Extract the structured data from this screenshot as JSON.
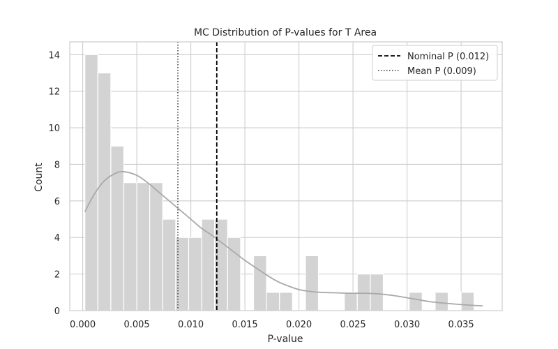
{
  "chart_data": {
    "type": "bar",
    "title": "MC Distribution of P-values for T Area",
    "xlabel": "P-value",
    "ylabel": "Count",
    "xlim": [
      -0.0012,
      0.0388
    ],
    "ylim": [
      0,
      14.7
    ],
    "xticks": [
      0.0,
      0.005,
      0.01,
      0.015,
      0.02,
      0.025,
      0.03,
      0.035
    ],
    "xtick_labels": [
      "0.000",
      "0.005",
      "0.010",
      "0.015",
      "0.020",
      "0.025",
      "0.030",
      "0.035"
    ],
    "yticks": [
      0,
      2,
      4,
      6,
      8,
      10,
      12,
      14
    ],
    "ytick_labels": [
      "0",
      "2",
      "4",
      "6",
      "8",
      "10",
      "12",
      "14"
    ],
    "grid": true,
    "legend_position": "top-right",
    "bin_edges": [
      0.0002,
      0.0014,
      0.0026,
      0.0038,
      0.005,
      0.0062,
      0.0074,
      0.0086,
      0.0098,
      0.011,
      0.0122,
      0.0134,
      0.0146,
      0.0158,
      0.017,
      0.0182,
      0.0194,
      0.0206,
      0.0218,
      0.023,
      0.0242,
      0.0254,
      0.0266,
      0.0278,
      0.029,
      0.0302,
      0.0314,
      0.0326,
      0.0338,
      0.035,
      0.0362,
      0.0374
    ],
    "values": [
      14,
      13,
      9,
      7,
      7,
      7,
      5,
      4,
      4,
      5,
      5,
      4,
      0,
      3,
      1,
      1,
      0,
      3,
      0,
      0,
      1,
      2,
      2,
      0,
      0,
      1,
      0,
      1,
      0,
      1,
      0
    ],
    "kde": {
      "name": "KDE",
      "x": [
        0.0002,
        0.001,
        0.002,
        0.003,
        0.0038,
        0.005,
        0.006,
        0.007,
        0.008,
        0.009,
        0.01,
        0.011,
        0.012,
        0.013,
        0.014,
        0.015,
        0.016,
        0.017,
        0.018,
        0.019,
        0.02,
        0.021,
        0.022,
        0.023,
        0.024,
        0.025,
        0.026,
        0.027,
        0.028,
        0.029,
        0.03,
        0.031,
        0.032,
        0.033,
        0.034,
        0.035,
        0.036,
        0.037
      ],
      "y": [
        5.4,
        6.3,
        7.1,
        7.5,
        7.6,
        7.4,
        7.0,
        6.5,
        6.0,
        5.5,
        5.0,
        4.5,
        4.1,
        3.65,
        3.2,
        2.75,
        2.35,
        1.95,
        1.6,
        1.35,
        1.15,
        1.05,
        1.0,
        0.98,
        0.96,
        0.95,
        0.95,
        0.93,
        0.88,
        0.8,
        0.7,
        0.6,
        0.5,
        0.43,
        0.38,
        0.33,
        0.29,
        0.26
      ]
    },
    "vlines": [
      {
        "name": "Nominal P (0.012)",
        "x": 0.0124,
        "style": "dashed",
        "color": "#000000"
      },
      {
        "name": "Mean P (0.009)",
        "x": 0.0088,
        "style": "dotted",
        "color": "#555555"
      }
    ],
    "colors": {
      "bar_fill": "#d3d3d3",
      "bar_edge": "#ffffff",
      "kde_line": "#a9a9a9",
      "grid": "#cccccc",
      "frame": "#cccccc"
    }
  }
}
